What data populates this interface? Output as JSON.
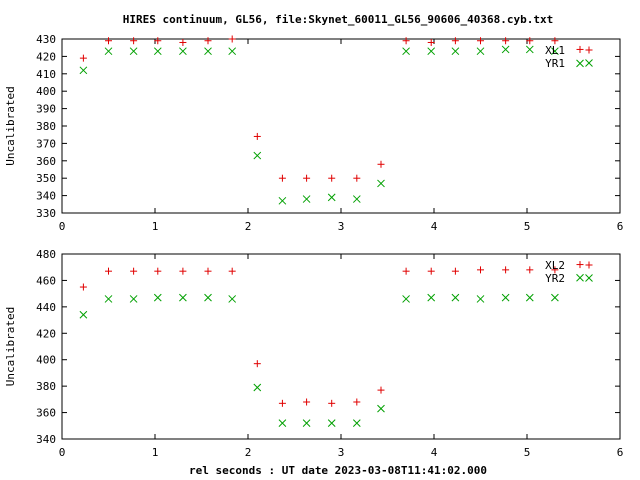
{
  "title": "HIRES continuum, GL56, file:Skynet_60011_GL56_90606_40368.cyb.txt",
  "xlabel": "rel seconds : UT date 2023-03-08T11:41:02.000",
  "colors": {
    "plus": "#e00000",
    "cross": "#00a000"
  },
  "chart_data": [
    {
      "type": "scatter",
      "ylabel": "Uncalibrated",
      "xlim": [
        0,
        6
      ],
      "ylim": [
        330,
        430
      ],
      "xticks": [
        0,
        1,
        2,
        3,
        4,
        5,
        6
      ],
      "yticks": [
        330,
        340,
        350,
        360,
        370,
        380,
        390,
        400,
        410,
        420,
        430
      ],
      "legend_position": "top-right",
      "series": [
        {
          "name": "XL1",
          "marker": "plus",
          "x": [
            0.23,
            0.5,
            0.77,
            1.03,
            1.3,
            1.57,
            1.83,
            2.1,
            2.37,
            2.63,
            2.9,
            3.17,
            3.43,
            3.7,
            3.97,
            4.23,
            4.5,
            4.77,
            5.03,
            5.3,
            5.57
          ],
          "y": [
            419,
            429,
            429,
            429,
            428,
            429,
            430,
            374,
            350,
            350,
            350,
            350,
            358,
            429,
            428,
            429,
            429,
            429,
            429,
            429,
            424
          ]
        },
        {
          "name": "YR1",
          "marker": "cross",
          "x": [
            0.23,
            0.5,
            0.77,
            1.03,
            1.3,
            1.57,
            1.83,
            2.1,
            2.37,
            2.63,
            2.9,
            3.17,
            3.43,
            3.7,
            3.97,
            4.23,
            4.5,
            4.77,
            5.03,
            5.3,
            5.57
          ],
          "y": [
            412,
            423,
            423,
            423,
            423,
            423,
            423,
            363,
            337,
            338,
            339,
            338,
            347,
            423,
            423,
            423,
            423,
            424,
            424,
            423,
            416
          ]
        }
      ]
    },
    {
      "type": "scatter",
      "ylabel": "Uncalibrated",
      "xlim": [
        0,
        6
      ],
      "ylim": [
        340,
        480
      ],
      "xticks": [
        0,
        1,
        2,
        3,
        4,
        5,
        6
      ],
      "yticks": [
        340,
        360,
        380,
        400,
        420,
        440,
        460,
        480
      ],
      "legend_position": "top-right",
      "series": [
        {
          "name": "XL2",
          "marker": "plus",
          "x": [
            0.23,
            0.5,
            0.77,
            1.03,
            1.3,
            1.57,
            1.83,
            2.1,
            2.37,
            2.63,
            2.9,
            3.17,
            3.43,
            3.7,
            3.97,
            4.23,
            4.5,
            4.77,
            5.03,
            5.3,
            5.57
          ],
          "y": [
            455,
            467,
            467,
            467,
            467,
            467,
            467,
            397,
            367,
            368,
            367,
            368,
            377,
            467,
            467,
            467,
            468,
            468,
            468,
            468,
            472
          ]
        },
        {
          "name": "YR2",
          "marker": "cross",
          "x": [
            0.23,
            0.5,
            0.77,
            1.03,
            1.3,
            1.57,
            1.83,
            2.1,
            2.37,
            2.63,
            2.9,
            3.17,
            3.43,
            3.7,
            3.97,
            4.23,
            4.5,
            4.77,
            5.03,
            5.3,
            5.57
          ],
          "y": [
            434,
            446,
            446,
            447,
            447,
            447,
            446,
            379,
            352,
            352,
            352,
            352,
            363,
            446,
            447,
            447,
            446,
            447,
            447,
            447,
            462
          ]
        }
      ]
    }
  ]
}
